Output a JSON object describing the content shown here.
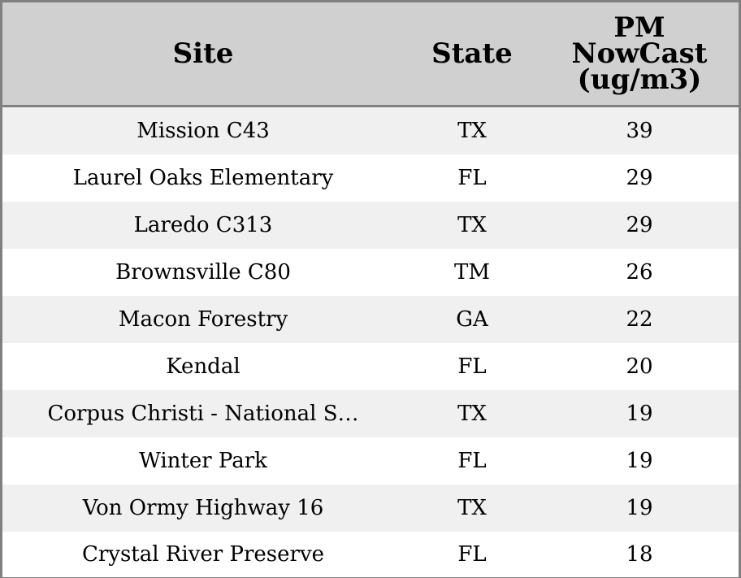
{
  "chart_data": {
    "type": "table",
    "columns": [
      "Site",
      "State",
      "PM\nNowCast\n(ug/m3)"
    ],
    "rows": [
      [
        "Mission C43",
        "TX",
        "39"
      ],
      [
        "Laurel Oaks Elementary",
        "FL",
        "29"
      ],
      [
        "Laredo C313",
        "TX",
        "29"
      ],
      [
        "Brownsville C80",
        "TM",
        "26"
      ],
      [
        "Macon Forestry",
        "GA",
        "22"
      ],
      [
        "Kendal",
        "FL",
        "20"
      ],
      [
        "Corpus Christi - National S…",
        "TX",
        "19"
      ],
      [
        "Winter Park",
        "FL",
        "19"
      ],
      [
        "Von Ormy Highway 16",
        "TX",
        "19"
      ],
      [
        "Crystal River Preserve",
        "FL",
        "18"
      ]
    ]
  },
  "colors": {
    "header_bg": "#d0d0d0",
    "row_alt_bg": "#f0f0f0",
    "row_bg": "#ffffff",
    "border": "#808080"
  }
}
